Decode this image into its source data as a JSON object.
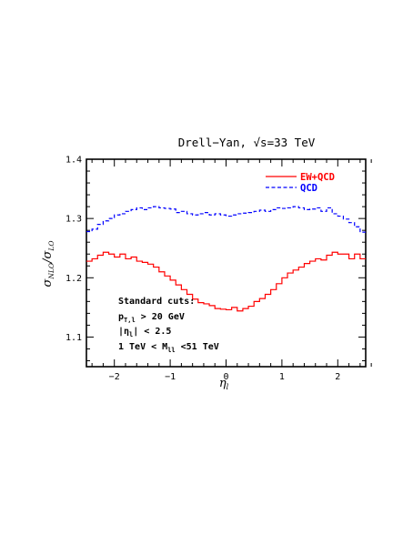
{
  "chart_data": {
    "type": "line",
    "title": "Drell−Yan, √s=33 TeV",
    "xlabel": "η",
    "xlabel_sub": "l",
    "ylabel": "σ",
    "ylabel_sub1": "NLO",
    "ylabel_mid": "/σ",
    "ylabel_sub2": "LO",
    "xlim": [
      -2.5,
      2.5
    ],
    "ylim": [
      1.05,
      1.4
    ],
    "x_ticks": [
      -2,
      -1,
      0,
      1,
      2
    ],
    "x_tick_labels": [
      "−2",
      "−1",
      "0",
      "1",
      "2"
    ],
    "y_ticks": [
      1.1,
      1.2,
      1.3,
      1.4
    ],
    "y_tick_labels": [
      "1.1",
      "1.2",
      "1.3",
      "1.4"
    ],
    "legend_position": "top-right",
    "bin_edges": [
      -2.5,
      -2.4,
      -2.3,
      -2.2,
      -2.1,
      -2.0,
      -1.9,
      -1.8,
      -1.7,
      -1.6,
      -1.5,
      -1.4,
      -1.3,
      -1.2,
      -1.1,
      -1.0,
      -0.9,
      -0.8,
      -0.7,
      -0.6,
      -0.5,
      -0.4,
      -0.3,
      -0.2,
      -0.1,
      0.0,
      0.1,
      0.2,
      0.3,
      0.4,
      0.5,
      0.6,
      0.7,
      0.8,
      0.9,
      1.0,
      1.1,
      1.2,
      1.3,
      1.4,
      1.5,
      1.6,
      1.7,
      1.8,
      1.9,
      2.0,
      2.1,
      2.2,
      2.3,
      2.4,
      2.5
    ],
    "series": [
      {
        "name": "EW+QCD",
        "color": "#ff0000",
        "style": "solid",
        "values": [
          1.228,
          1.232,
          1.238,
          1.243,
          1.24,
          1.235,
          1.24,
          1.232,
          1.235,
          1.228,
          1.226,
          1.223,
          1.218,
          1.21,
          1.203,
          1.196,
          1.188,
          1.18,
          1.172,
          1.164,
          1.158,
          1.156,
          1.153,
          1.148,
          1.147,
          1.146,
          1.15,
          1.144,
          1.148,
          1.152,
          1.16,
          1.165,
          1.172,
          1.18,
          1.19,
          1.2,
          1.208,
          1.213,
          1.218,
          1.224,
          1.228,
          1.232,
          1.23,
          1.238,
          1.243,
          1.24,
          1.24,
          1.232,
          1.24,
          1.232
        ]
      },
      {
        "name": "QCD",
        "color": "#0000ff",
        "style": "dashed",
        "values": [
          1.278,
          1.282,
          1.29,
          1.296,
          1.3,
          1.306,
          1.308,
          1.312,
          1.315,
          1.318,
          1.315,
          1.318,
          1.32,
          1.318,
          1.317,
          1.316,
          1.31,
          1.312,
          1.308,
          1.306,
          1.308,
          1.31,
          1.306,
          1.308,
          1.306,
          1.304,
          1.306,
          1.308,
          1.309,
          1.31,
          1.312,
          1.314,
          1.312,
          1.315,
          1.318,
          1.317,
          1.318,
          1.32,
          1.318,
          1.315,
          1.316,
          1.318,
          1.312,
          1.318,
          1.308,
          1.304,
          1.299,
          1.293,
          1.286,
          1.277
        ]
      }
    ],
    "annotations": {
      "line1": "Standard cuts:",
      "line2_main": "p",
      "line2_sub": "T,l",
      "line2_rest": " > 20 GeV",
      "line3_pre": "|η",
      "line3_sub": "l",
      "line3_rest": "| < 2.5",
      "line4_pre": "1 TeV < M",
      "line4_sub": "ll",
      "line4_rest": " <51 TeV"
    }
  }
}
